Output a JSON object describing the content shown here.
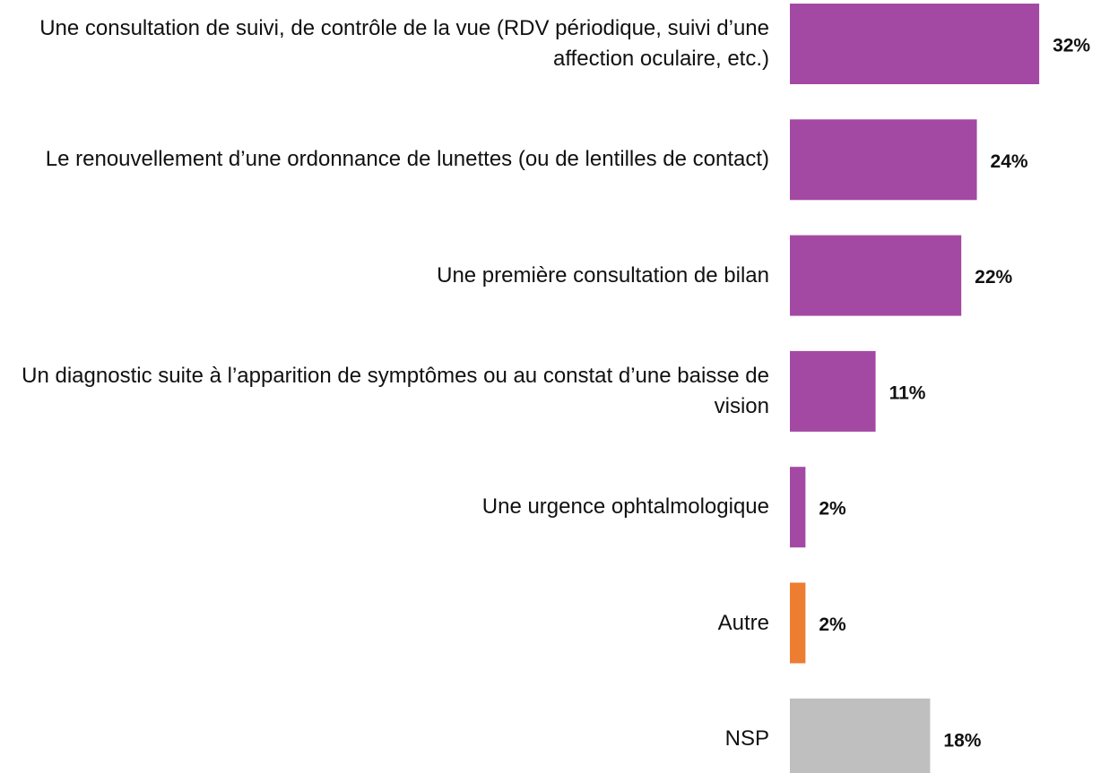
{
  "chart_data": {
    "type": "bar",
    "orientation": "horizontal",
    "categories": [
      "Une consultation de suivi, de contrôle de la vue (RDV périodique, suivi d’une affection oculaire, etc.)",
      "Le renouvellement d’une ordonnance de lunettes (ou de lentilles de contact)",
      "Une première consultation de bilan",
      "Un diagnostic suite à l’apparition de symptômes ou au constat d’une baisse de vision",
      "Une urgence ophtalmologique",
      "Autre",
      "NSP"
    ],
    "values": [
      32,
      24,
      22,
      11,
      2,
      2,
      18
    ],
    "value_labels": [
      "32%",
      "24%",
      "22%",
      "11%",
      "2%",
      "2%",
      "18%"
    ],
    "colors": [
      "#a349a4",
      "#a349a4",
      "#a349a4",
      "#a349a4",
      "#a349a4",
      "#ed7d31",
      "#bfbfbf"
    ]
  }
}
